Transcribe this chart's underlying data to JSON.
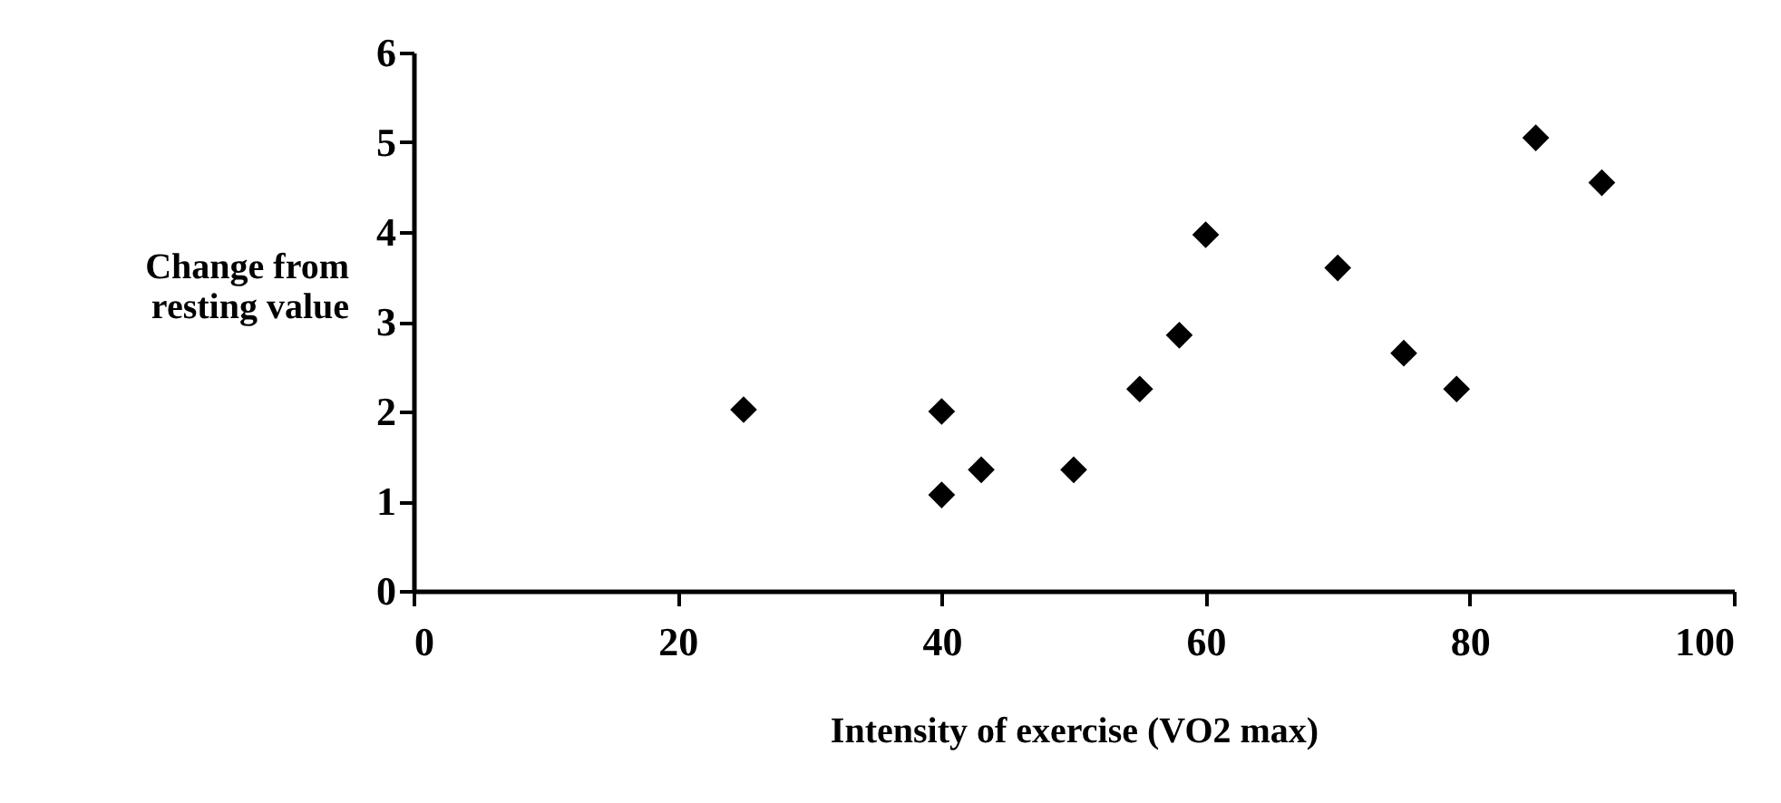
{
  "chart_data": {
    "type": "scatter",
    "xlabel": "Intensity of exercise (VO2 max)",
    "ylabel": "Change from resting value",
    "x": [
      25,
      40,
      40,
      43,
      50,
      55,
      58,
      60,
      70,
      75,
      79,
      85,
      90
    ],
    "series": [
      {
        "color": "#000000",
        "values": [
          2.02,
          2.0,
          1.07,
          1.35,
          1.35,
          2.25,
          2.85,
          3.97,
          3.6,
          2.65,
          2.25,
          5.05,
          4.55
        ]
      }
    ],
    "xlim": [
      0,
      100
    ],
    "xticks": [
      0,
      20,
      40,
      60,
      80,
      100
    ],
    "ylim": [
      0,
      6
    ],
    "yticks": [
      0,
      1,
      2,
      3,
      4,
      5,
      6
    ],
    "marker": "diamond",
    "grid": false,
    "legend": false
  }
}
